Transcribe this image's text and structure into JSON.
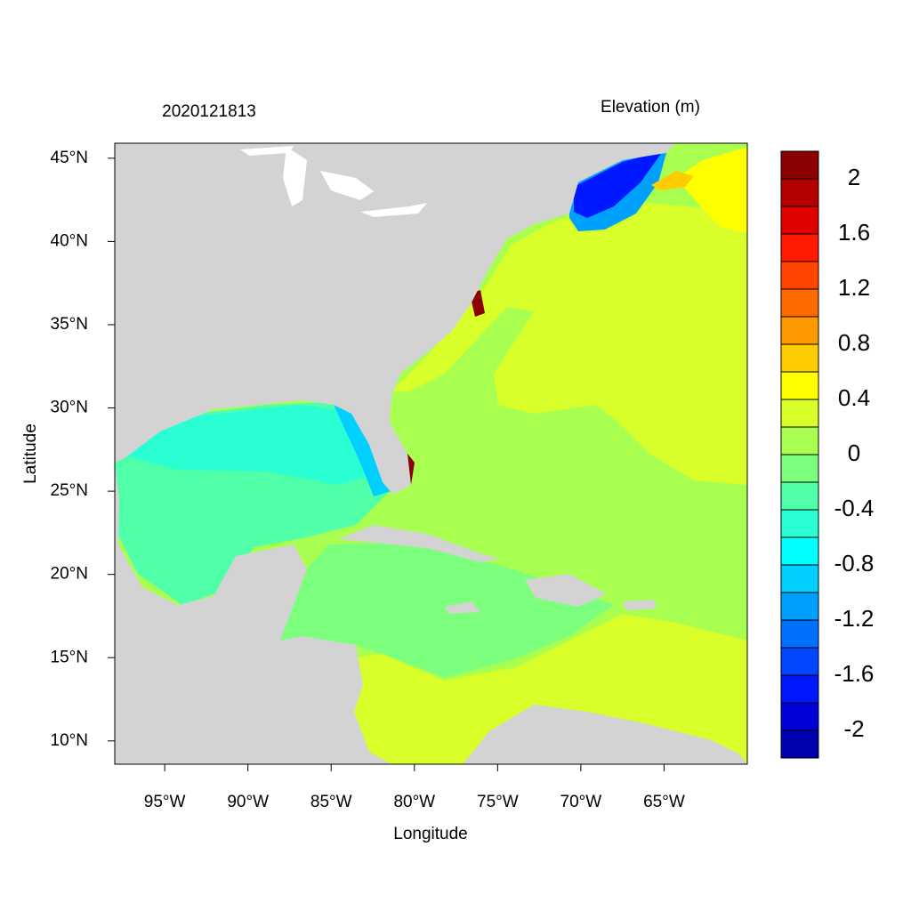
{
  "map": {
    "title": "2020121813",
    "legend_title": "Elevation (m)",
    "x_label": "Longitude",
    "y_label": "Latitude",
    "xlim": [
      -98,
      -60
    ],
    "ylim": [
      8.6,
      45.9
    ],
    "xticks": [
      {
        "value": -95,
        "label": "95°W"
      },
      {
        "value": -90,
        "label": "90°W"
      },
      {
        "value": -85,
        "label": "85°W"
      },
      {
        "value": -80,
        "label": "80°W"
      },
      {
        "value": -75,
        "label": "75°W"
      },
      {
        "value": -70,
        "label": "70°W"
      },
      {
        "value": -65,
        "label": "65°W"
      }
    ],
    "yticks": [
      {
        "value": 10,
        "label": "10°N"
      },
      {
        "value": 15,
        "label": "15°N"
      },
      {
        "value": 20,
        "label": "20°N"
      },
      {
        "value": 25,
        "label": "25°N"
      },
      {
        "value": 30,
        "label": "30°N"
      },
      {
        "value": 35,
        "label": "35°N"
      },
      {
        "value": 40,
        "label": "40°N"
      },
      {
        "value": 45,
        "label": "45°N"
      }
    ],
    "colorbar": {
      "lim": [
        -2.2,
        2.2
      ],
      "ticks": [
        -2,
        -1.6,
        -1.2,
        -0.8,
        -0.4,
        0,
        0.4,
        0.8,
        1.2,
        1.6,
        2
      ],
      "colors": [
        "#0000b0",
        "#0000d8",
        "#0018ff",
        "#0045ff",
        "#0070ff",
        "#00a0ff",
        "#00cfff",
        "#00ffff",
        "#2affd4",
        "#50ffa8",
        "#7cff7c",
        "#a8ff50",
        "#d8ff2a",
        "#ffff00",
        "#ffcc00",
        "#ff9900",
        "#ff6a00",
        "#ff4500",
        "#ff1a00",
        "#e00000",
        "#b40000",
        "#8b0000"
      ]
    }
  }
}
